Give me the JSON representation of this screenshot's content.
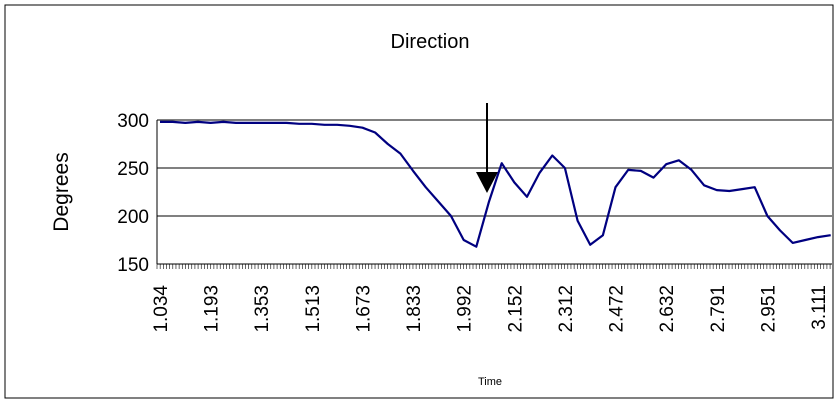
{
  "chart_data": {
    "type": "line",
    "title": "Direction",
    "x_label": "Time",
    "y_label": "Degrees",
    "categories": [
      "1.034",
      null,
      null,
      null,
      "1.193",
      null,
      null,
      null,
      "1.353",
      null,
      null,
      null,
      "1.513",
      null,
      null,
      null,
      "1.673",
      null,
      null,
      null,
      "1.833",
      null,
      null,
      null,
      "1.992",
      null,
      null,
      null,
      "2.152",
      null,
      null,
      null,
      "2.312",
      null,
      null,
      null,
      "2.472",
      null,
      null,
      null,
      "2.632",
      null,
      null,
      null,
      "2.791",
      null,
      null,
      null,
      "2.951",
      null,
      null,
      null,
      "3.111",
      null
    ],
    "series": [
      {
        "name": "Direction",
        "color": "#000080",
        "values": [
          298,
          298,
          297,
          298,
          297,
          298,
          297,
          297,
          297,
          297,
          297,
          296,
          296,
          295,
          295,
          294,
          292,
          287,
          275,
          265,
          247,
          230,
          215,
          200,
          175,
          168,
          215,
          255,
          235,
          220,
          245,
          263,
          250,
          195,
          170,
          180,
          230,
          248,
          247,
          240,
          254,
          258,
          248,
          232,
          227,
          226,
          228,
          230,
          200,
          185,
          172,
          175,
          178,
          180
        ]
      }
    ],
    "ylim": [
      150,
      300
    ],
    "yticks": [
      150,
      200,
      250,
      300
    ],
    "grid": true
  }
}
